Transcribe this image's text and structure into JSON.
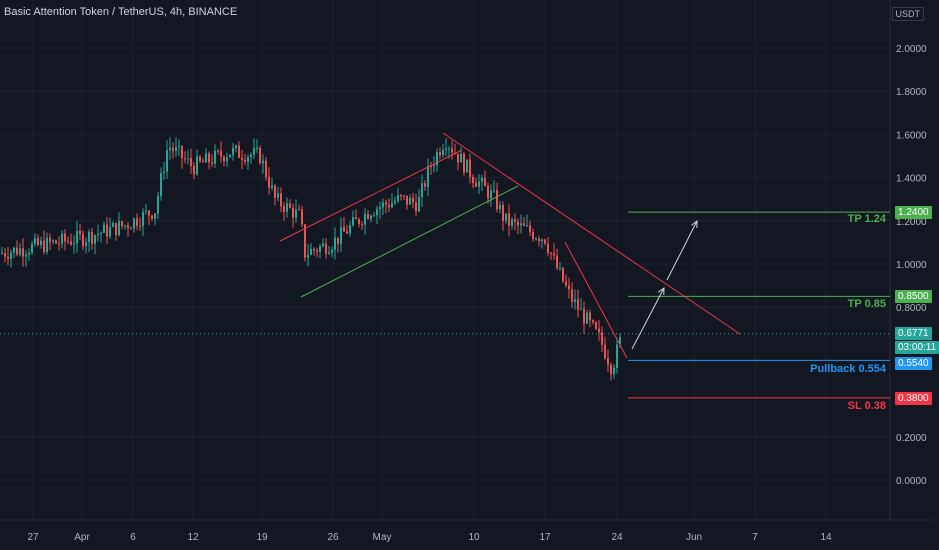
{
  "header": {
    "title": "Basic Attention Token / TetherUS, 4h, BINANCE"
  },
  "colors": {
    "background": "#131722",
    "up": "#26a69a",
    "down": "#ef5350",
    "green_level": "#4caf50",
    "red_level": "#f23645",
    "blue_level": "#2196f3",
    "trend_red": "#f23645",
    "trend_green": "#4caf50",
    "arrow": "#d1d4dc"
  },
  "chart_data": {
    "type": "candlestick",
    "pair": "BATUSDT",
    "timeframe": "4h",
    "exchange": "BINANCE",
    "currency_label": "USDT",
    "y_tick_labels": [
      "2.0000",
      "1.8000",
      "1.6000",
      "1.4000",
      "1.2000",
      "1.0000",
      "0.8000",
      "0.2000",
      "0.0000"
    ],
    "x_tick_labels": [
      "27",
      "Apr",
      "6",
      "12",
      "19",
      "26",
      "May",
      "10",
      "17",
      "24",
      "Jun",
      "7",
      "14"
    ],
    "current_price": "0.6771",
    "countdown": "03:00:11",
    "levels": [
      {
        "name": "tp2",
        "label": "TP 1.24",
        "tag": "1.2400",
        "value": 1.24,
        "color": "green"
      },
      {
        "name": "tp1",
        "label": "TP 0.85",
        "tag": "0.8500",
        "value": 0.85,
        "color": "green"
      },
      {
        "name": "pullback",
        "label": "Pullback 0.554",
        "tag": "0.5540",
        "value": 0.554,
        "color": "blue"
      },
      {
        "name": "sl",
        "label": "SL 0.38",
        "tag": "0.3800",
        "value": 0.38,
        "color": "red"
      }
    ],
    "price_path": [
      [
        "Mar 24",
        1.05
      ],
      [
        "Mar 27",
        1.08
      ],
      [
        "Apr 1",
        1.12
      ],
      [
        "Apr 5",
        1.18
      ],
      [
        "Apr 8",
        1.25
      ],
      [
        "Apr 9",
        1.55
      ],
      [
        "Apr 12",
        1.45
      ],
      [
        "Apr 15",
        1.52
      ],
      [
        "Apr 18",
        1.5
      ],
      [
        "Apr 20",
        1.3
      ],
      [
        "Apr 22",
        1.22
      ],
      [
        "Apr 24",
        1.05
      ],
      [
        "Apr 26",
        1.1
      ],
      [
        "Apr 29",
        1.25
      ],
      [
        "May 2",
        1.3
      ],
      [
        "May 4",
        1.28
      ],
      [
        "May 6",
        1.45
      ],
      [
        "May 7",
        1.58
      ],
      [
        "May 10",
        1.4
      ],
      [
        "May 12",
        1.3
      ],
      [
        "May 14",
        1.2
      ],
      [
        "May 17",
        1.12
      ],
      [
        "May 18",
        1.0
      ],
      [
        "May 20",
        0.85
      ],
      [
        "May 22",
        0.65
      ],
      [
        "May 23",
        0.52
      ],
      [
        "May 24",
        0.67
      ]
    ]
  }
}
